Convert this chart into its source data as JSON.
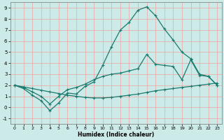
{
  "xlabel": "Humidex (Indice chaleur)",
  "bg_color": "#cceae7",
  "grid_color": "#e8b0b0",
  "line_color": "#1a7a6e",
  "xlim": [
    -0.5,
    23.5
  ],
  "ylim": [
    -1.5,
    9.5
  ],
  "xticks": [
    0,
    1,
    2,
    3,
    4,
    5,
    6,
    7,
    8,
    9,
    10,
    11,
    12,
    13,
    14,
    15,
    16,
    17,
    18,
    19,
    20,
    21,
    22,
    23
  ],
  "yticks": [
    -1,
    0,
    1,
    2,
    3,
    4,
    5,
    6,
    7,
    8,
    9
  ],
  "line1_x": [
    0,
    1,
    2,
    3,
    4,
    5,
    6,
    7,
    8,
    9,
    10,
    11,
    12,
    13,
    14,
    15,
    16,
    17,
    18,
    19,
    20,
    21,
    22,
    23
  ],
  "line1_y": [
    2.0,
    1.7,
    1.1,
    0.6,
    -0.3,
    0.4,
    1.3,
    1.2,
    1.9,
    2.3,
    3.8,
    5.5,
    7.0,
    7.7,
    8.8,
    9.1,
    8.3,
    7.1,
    6.1,
    5.0,
    4.4,
    3.0,
    2.8,
    2.0
  ],
  "line2_x": [
    0,
    1,
    2,
    3,
    4,
    5,
    6,
    7,
    8,
    9,
    10,
    11,
    12,
    13,
    14,
    15,
    16,
    17,
    18,
    19,
    20,
    21,
    22,
    23
  ],
  "line2_y": [
    2.0,
    1.8,
    1.4,
    1.0,
    0.3,
    1.0,
    1.6,
    1.8,
    2.1,
    2.5,
    2.8,
    3.0,
    3.1,
    3.3,
    3.5,
    4.8,
    3.9,
    3.8,
    3.7,
    2.5,
    4.3,
    2.9,
    2.8,
    2.0
  ],
  "line3_x": [
    0,
    1,
    2,
    3,
    4,
    5,
    6,
    7,
    8,
    9,
    10,
    11,
    12,
    13,
    14,
    15,
    16,
    17,
    18,
    19,
    20,
    21,
    22,
    23
  ],
  "line3_y": [
    2.0,
    1.85,
    1.7,
    1.55,
    1.4,
    1.25,
    1.1,
    1.0,
    0.9,
    0.85,
    0.85,
    0.9,
    1.0,
    1.1,
    1.2,
    1.35,
    1.5,
    1.6,
    1.7,
    1.8,
    1.9,
    2.0,
    2.1,
    2.2
  ]
}
